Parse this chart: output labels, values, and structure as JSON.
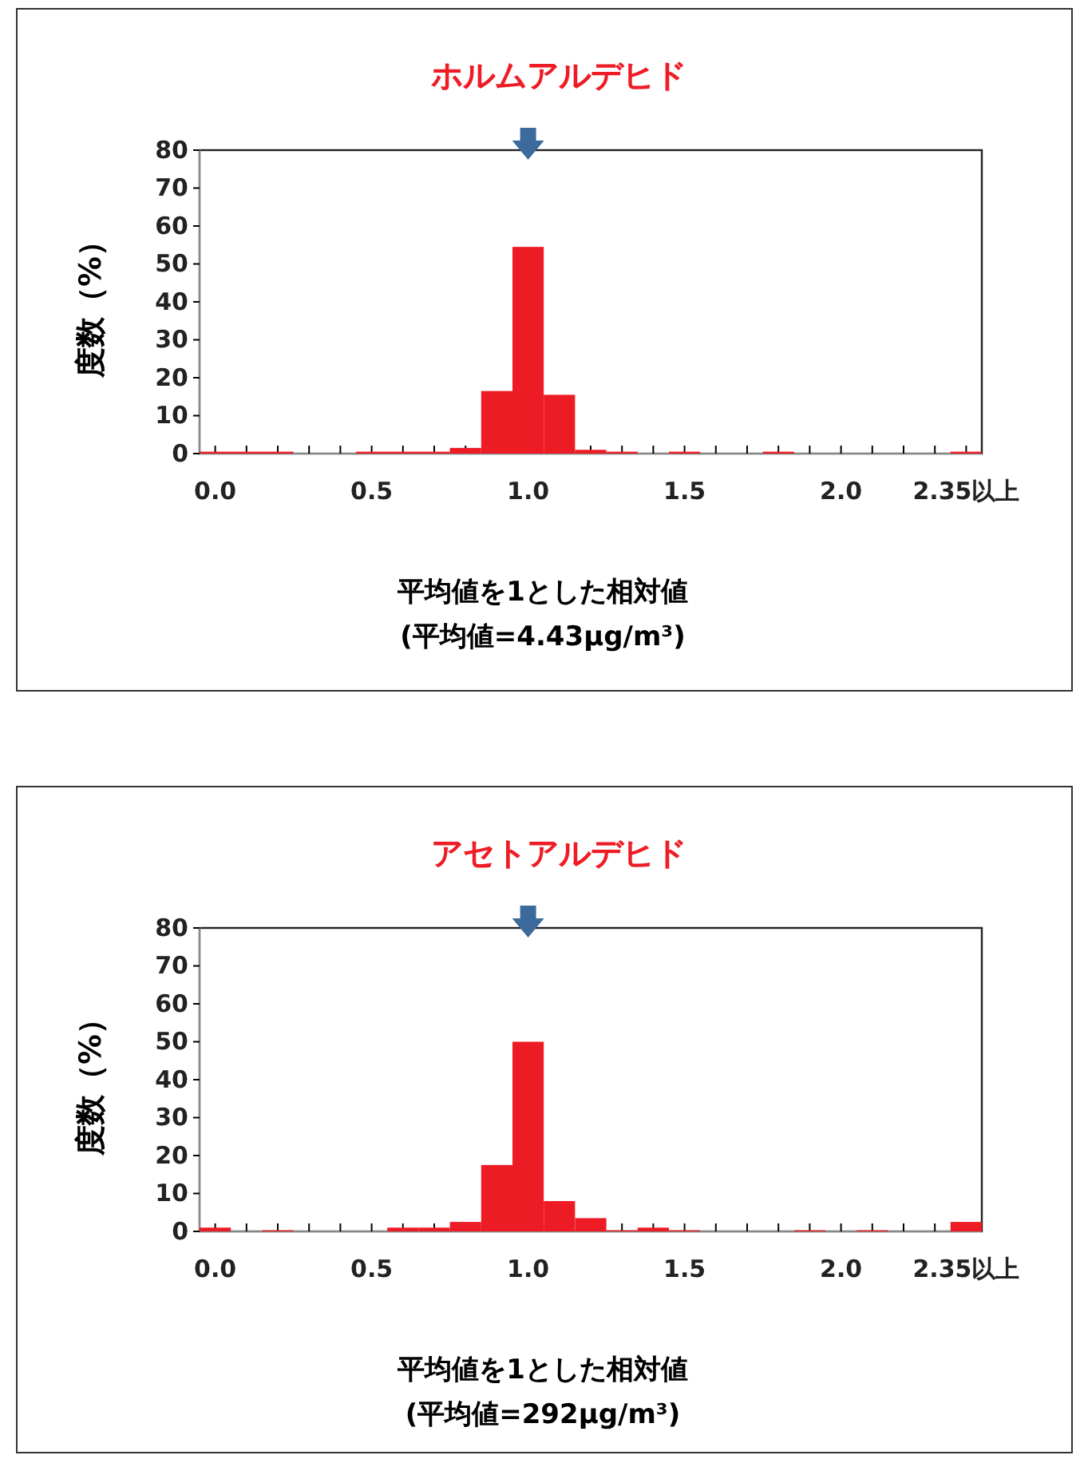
{
  "chart_data": [
    {
      "type": "bar",
      "title": "ホルムアルデヒド",
      "ylabel": "度数（%）",
      "xlabel": "平均値を1とした相対値",
      "annotations": [
        "(平均値=4.43μg/m³)"
      ],
      "categories": [
        "0.0",
        null,
        null,
        null,
        null,
        "0.5",
        null,
        null,
        null,
        null,
        "1.0",
        null,
        null,
        null,
        null,
        "1.5",
        null,
        null,
        null,
        null,
        "2.0",
        null,
        null,
        null,
        "2.35以上"
      ],
      "values": [
        0.5,
        0.5,
        0.5,
        0,
        0,
        0.5,
        0.5,
        0.5,
        1.5,
        16.5,
        54.5,
        15.5,
        1,
        0.5,
        0,
        0.5,
        0,
        0,
        0.5,
        0,
        0,
        0,
        0,
        0,
        0.5
      ],
      "color": "#ed1c24",
      "ylim": [
        0,
        80
      ],
      "yticks": [
        0,
        10,
        20,
        30,
        40,
        50,
        60,
        70,
        80
      ],
      "grid": false
    },
    {
      "type": "bar",
      "title": "アセトアルデヒド",
      "ylabel": "度数（%）",
      "xlabel": "平均値を1とした相対値",
      "annotations": [
        "(平均値=292μg/m³)"
      ],
      "categories": [
        "0.0",
        null,
        null,
        null,
        null,
        "0.5",
        null,
        null,
        null,
        null,
        "1.0",
        null,
        null,
        null,
        null,
        "1.5",
        null,
        null,
        null,
        null,
        "2.0",
        null,
        null,
        null,
        "2.35以上"
      ],
      "values": [
        1,
        0,
        0.3,
        0,
        0,
        0,
        1,
        1,
        2.5,
        17.5,
        50,
        8,
        3.5,
        0.3,
        1,
        0.3,
        0,
        0,
        0,
        0.3,
        0,
        0.3,
        0,
        0,
        2.5
      ],
      "color": "#ed1c24",
      "ylim": [
        0,
        80
      ],
      "yticks": [
        0,
        10,
        20,
        30,
        40,
        50,
        60,
        70,
        80
      ],
      "grid": false
    }
  ]
}
